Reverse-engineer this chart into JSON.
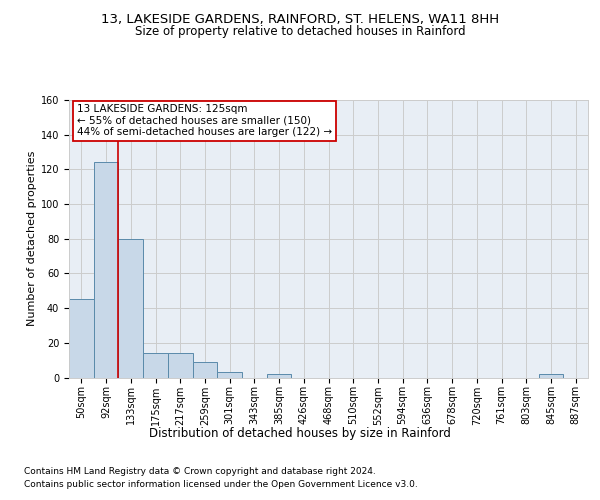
{
  "title_line1": "13, LAKESIDE GARDENS, RAINFORD, ST. HELENS, WA11 8HH",
  "title_line2": "Size of property relative to detached houses in Rainford",
  "xlabel": "Distribution of detached houses by size in Rainford",
  "ylabel": "Number of detached properties",
  "footer_line1": "Contains HM Land Registry data © Crown copyright and database right 2024.",
  "footer_line2": "Contains public sector information licensed under the Open Government Licence v3.0.",
  "bin_labels": [
    "50sqm",
    "92sqm",
    "133sqm",
    "175sqm",
    "217sqm",
    "259sqm",
    "301sqm",
    "343sqm",
    "385sqm",
    "426sqm",
    "468sqm",
    "510sqm",
    "552sqm",
    "594sqm",
    "636sqm",
    "678sqm",
    "720sqm",
    "761sqm",
    "803sqm",
    "845sqm",
    "887sqm"
  ],
  "bar_values": [
    45,
    124,
    80,
    14,
    14,
    9,
    3,
    0,
    2,
    0,
    0,
    0,
    0,
    0,
    0,
    0,
    0,
    0,
    0,
    2,
    0
  ],
  "bar_color": "#c8d8e8",
  "bar_edge_color": "#5a8aaa",
  "annotation_text": "13 LAKESIDE GARDENS: 125sqm\n← 55% of detached houses are smaller (150)\n44% of semi-detached houses are larger (122) →",
  "annotation_box_color": "#ffffff",
  "annotation_box_edge_color": "#cc0000",
  "vline_x": 1.5,
  "vline_color": "#cc0000",
  "ylim": [
    0,
    160
  ],
  "yticks": [
    0,
    20,
    40,
    60,
    80,
    100,
    120,
    140,
    160
  ],
  "grid_color": "#cccccc",
  "bg_color": "#e8eef5",
  "title_fontsize": 9.5,
  "subtitle_fontsize": 8.5,
  "ylabel_fontsize": 8,
  "xlabel_fontsize": 8.5,
  "tick_fontsize": 7,
  "annotation_fontsize": 7.5,
  "footer_fontsize": 6.5
}
